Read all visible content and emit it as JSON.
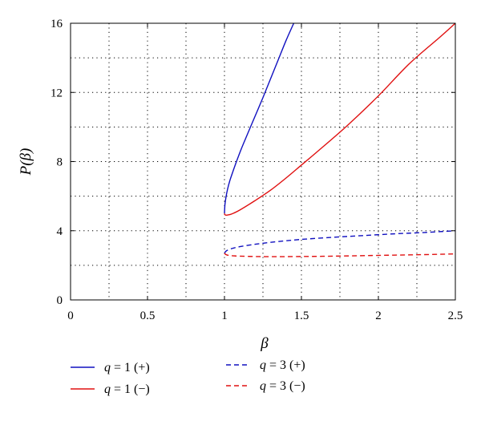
{
  "chart_data": {
    "type": "line",
    "title": "",
    "xlabel": "β",
    "ylabel": "P(β)",
    "xlim": [
      0,
      2.5
    ],
    "ylim": [
      0,
      16
    ],
    "grid": true,
    "grid_style": "dotted",
    "x_ticks": [
      0,
      0.5,
      1,
      1.5,
      2,
      2.5
    ],
    "x_tick_labels": [
      "0",
      "0.5",
      "1",
      "1.5",
      "2",
      "2.5"
    ],
    "x_minor_grid": [
      0.25,
      0.75,
      1.25,
      1.75,
      2.25
    ],
    "y_ticks": [
      0,
      4,
      8,
      12,
      16
    ],
    "y_tick_labels": [
      "0",
      "4",
      "8",
      "12",
      "16"
    ],
    "y_minor_grid": [
      2,
      6,
      10,
      14
    ],
    "legend_placement": "below",
    "series": [
      {
        "name": "q = 1 (+)",
        "q": "1",
        "sign": "+",
        "color": "#1010c0",
        "style": "solid",
        "x": [
          1.0,
          1.003,
          1.01,
          1.02,
          1.035,
          1.05,
          1.08,
          1.11,
          1.15,
          1.2,
          1.25,
          1.3,
          1.35,
          1.4,
          1.45
        ],
        "y": [
          5.0,
          5.5,
          5.95,
          6.4,
          6.9,
          7.3,
          8.05,
          8.75,
          9.6,
          10.65,
          11.7,
          12.8,
          13.9,
          15.0,
          16.0
        ]
      },
      {
        "name": "q = 1 (−)",
        "q": "1",
        "sign": "−",
        "color": "#e01010",
        "style": "solid",
        "x": [
          1.0,
          1.003,
          1.01,
          1.02,
          1.04,
          1.06,
          1.1,
          1.2,
          1.3,
          1.4,
          1.5,
          1.6,
          1.8,
          2.0,
          2.2,
          2.4,
          2.5
        ],
        "y": [
          5.0,
          4.93,
          4.9,
          4.91,
          4.95,
          5.02,
          5.2,
          5.75,
          6.35,
          7.05,
          7.8,
          8.55,
          10.1,
          11.8,
          13.65,
          15.2,
          16.0
        ]
      },
      {
        "name": "q = 3 (+)",
        "q": "3",
        "sign": "+",
        "color": "#1010c0",
        "style": "dashed",
        "x": [
          1.0,
          1.01,
          1.03,
          1.06,
          1.1,
          1.2,
          1.3,
          1.4,
          1.5,
          1.7,
          1.9,
          2.1,
          2.3,
          2.5
        ],
        "y": [
          2.7,
          2.82,
          2.92,
          3.0,
          3.08,
          3.22,
          3.33,
          3.42,
          3.5,
          3.62,
          3.72,
          3.82,
          3.9,
          4.0
        ]
      },
      {
        "name": "q = 3 (−)",
        "q": "3",
        "sign": "−",
        "color": "#e01010",
        "style": "dashed",
        "x": [
          1.0,
          1.01,
          1.03,
          1.06,
          1.1,
          1.2,
          1.3,
          1.5,
          1.7,
          1.9,
          2.1,
          2.3,
          2.5
        ],
        "y": [
          2.7,
          2.62,
          2.57,
          2.55,
          2.53,
          2.51,
          2.5,
          2.51,
          2.53,
          2.56,
          2.59,
          2.62,
          2.66
        ]
      }
    ]
  }
}
